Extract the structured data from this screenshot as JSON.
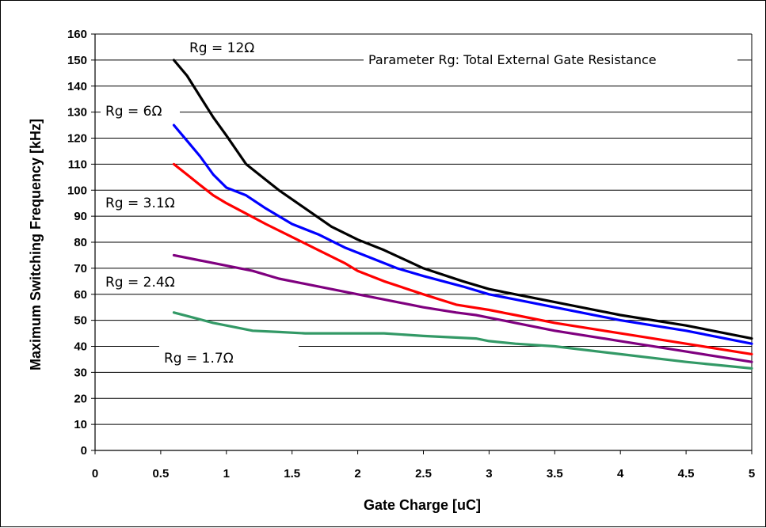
{
  "chart_data": {
    "type": "line",
    "xlabel": "Gate Charge [uC]",
    "ylabel": "Maximum Switching Frequency [kHz]",
    "xlim": [
      0,
      5
    ],
    "ylim": [
      0,
      160
    ],
    "xticks": [
      0,
      0.5,
      1,
      1.5,
      2,
      2.5,
      3,
      3.5,
      4,
      4.5,
      5
    ],
    "xtick_labels": [
      "0",
      "0.5",
      "1",
      "1.5",
      "2",
      "2.5",
      "3",
      "3.5",
      "4",
      "4.5",
      "5"
    ],
    "yticks": [
      0,
      10,
      20,
      30,
      40,
      50,
      60,
      70,
      80,
      90,
      100,
      110,
      120,
      130,
      140,
      150,
      160
    ],
    "ytick_labels": [
      "0",
      "10",
      "20",
      "30",
      "40",
      "50",
      "60",
      "70",
      "80",
      "90",
      "100",
      "110",
      "120",
      "130",
      "140",
      "150",
      "160"
    ],
    "grid": true,
    "note": "Parameter Rg: Total External Gate Resistance",
    "series": [
      {
        "name": "Rg = 12Ω",
        "color": "#000000",
        "x": [
          0.6,
          0.7,
          0.8,
          0.9,
          1.0,
          1.15,
          1.3,
          1.4,
          1.6,
          1.8,
          2.0,
          2.2,
          2.5,
          2.8,
          3.0,
          3.2,
          3.5,
          4.0,
          4.5,
          5.0
        ],
        "y": [
          150,
          144,
          136,
          128,
          121,
          110,
          104,
          100,
          93,
          86,
          81,
          77,
          70,
          65,
          62,
          60,
          57,
          52,
          48,
          43
        ]
      },
      {
        "name": "Rg = 6Ω",
        "color": "#0000ff",
        "x": [
          0.6,
          0.7,
          0.8,
          0.9,
          1.0,
          1.15,
          1.3,
          1.5,
          1.7,
          1.9,
          2.1,
          2.3,
          2.5,
          2.8,
          3.0,
          3.2,
          3.5,
          4.0,
          4.5,
          5.0
        ],
        "y": [
          125,
          119,
          113,
          106,
          101,
          98,
          93,
          87,
          83,
          78,
          74,
          70,
          67,
          63,
          60,
          58,
          55,
          50,
          46,
          41
        ]
      },
      {
        "name": "Rg = 3.1Ω",
        "color": "#ff0000",
        "x": [
          0.6,
          0.7,
          0.8,
          0.9,
          1.0,
          1.15,
          1.3,
          1.5,
          1.7,
          1.9,
          2.0,
          2.2,
          2.5,
          2.75,
          3.0,
          3.2,
          3.5,
          4.0,
          4.5,
          5.0
        ],
        "y": [
          110,
          106,
          102,
          98,
          95,
          91,
          87,
          82,
          77,
          72,
          69,
          65,
          60,
          56,
          54,
          52,
          49,
          45,
          41,
          37
        ]
      },
      {
        "name": "Rg = 2.4Ω",
        "color": "#7f007f",
        "x": [
          0.6,
          0.8,
          1.0,
          1.2,
          1.4,
          1.5,
          1.7,
          2.0,
          2.2,
          2.5,
          2.75,
          2.9,
          3.0,
          3.2,
          3.5,
          4.0,
          4.5,
          5.0
        ],
        "y": [
          75,
          73,
          71,
          69,
          66,
          65,
          63,
          60,
          58,
          55,
          53,
          52,
          51,
          49,
          46,
          42,
          38,
          34
        ]
      },
      {
        "name": "Rg = 1.7Ω",
        "color": "#339966",
        "x": [
          0.6,
          0.75,
          0.9,
          1.0,
          1.2,
          1.4,
          1.6,
          2.0,
          2.2,
          2.5,
          2.9,
          3.0,
          3.2,
          3.5,
          4.0,
          4.5,
          5.0
        ],
        "y": [
          53,
          51,
          49,
          48,
          46,
          45.5,
          45,
          45,
          45,
          44,
          43,
          42,
          41,
          40,
          37,
          34,
          31.5
        ]
      }
    ],
    "labels": [
      {
        "text": "Rg = 12Ω",
        "series": 0
      },
      {
        "text": "Rg = 6Ω",
        "series": 1
      },
      {
        "text": "Rg = 3.1Ω",
        "series": 2
      },
      {
        "text": "Rg = 2.4Ω",
        "series": 3
      },
      {
        "text": "Rg = 1.7Ω",
        "series": 4
      }
    ]
  }
}
